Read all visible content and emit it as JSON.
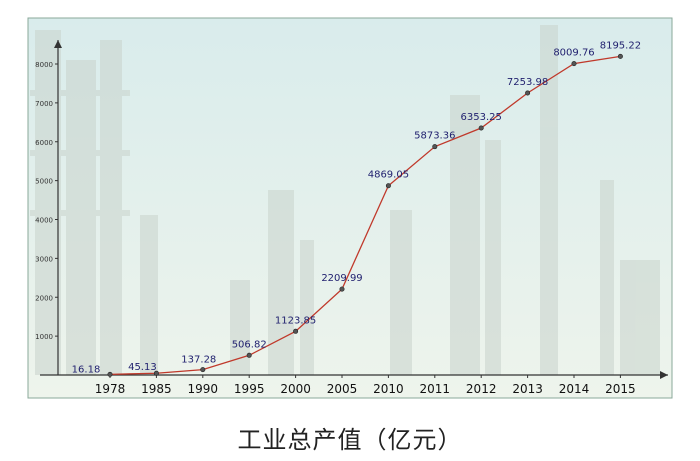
{
  "caption": "工业总产值（亿元）",
  "colors": {
    "line": "#c0392b",
    "label_text": "#1f1f6e",
    "axis": "#333333",
    "frame": "#8aa89a",
    "sky_top": "#d9ecec",
    "sky_bottom": "#eef4ec"
  },
  "chart_data": {
    "type": "line",
    "categories": [
      "1978",
      "1985",
      "1990",
      "1995",
      "2000",
      "2005",
      "2010",
      "2011",
      "2012",
      "2013",
      "2014",
      "2015"
    ],
    "values": [
      16.18,
      45.13,
      137.28,
      506.82,
      1123.85,
      2209.99,
      4869.05,
      5873.36,
      6353.25,
      7253.98,
      8009.76,
      8195.22
    ],
    "value_labels": [
      "16.18",
      "45.13",
      "137.28",
      "506.82",
      "1123.85",
      "2209.99",
      "4869.05",
      "5873.36",
      "6353.25",
      "7253.98",
      "8009.76",
      "8195.22"
    ],
    "y_ticks": [
      "1000",
      "2000",
      "3000",
      "4000",
      "5000",
      "6000",
      "7000",
      "8000"
    ],
    "ylim": [
      0,
      8400
    ],
    "grid": false,
    "title": "",
    "xlabel": "",
    "ylabel": ""
  }
}
